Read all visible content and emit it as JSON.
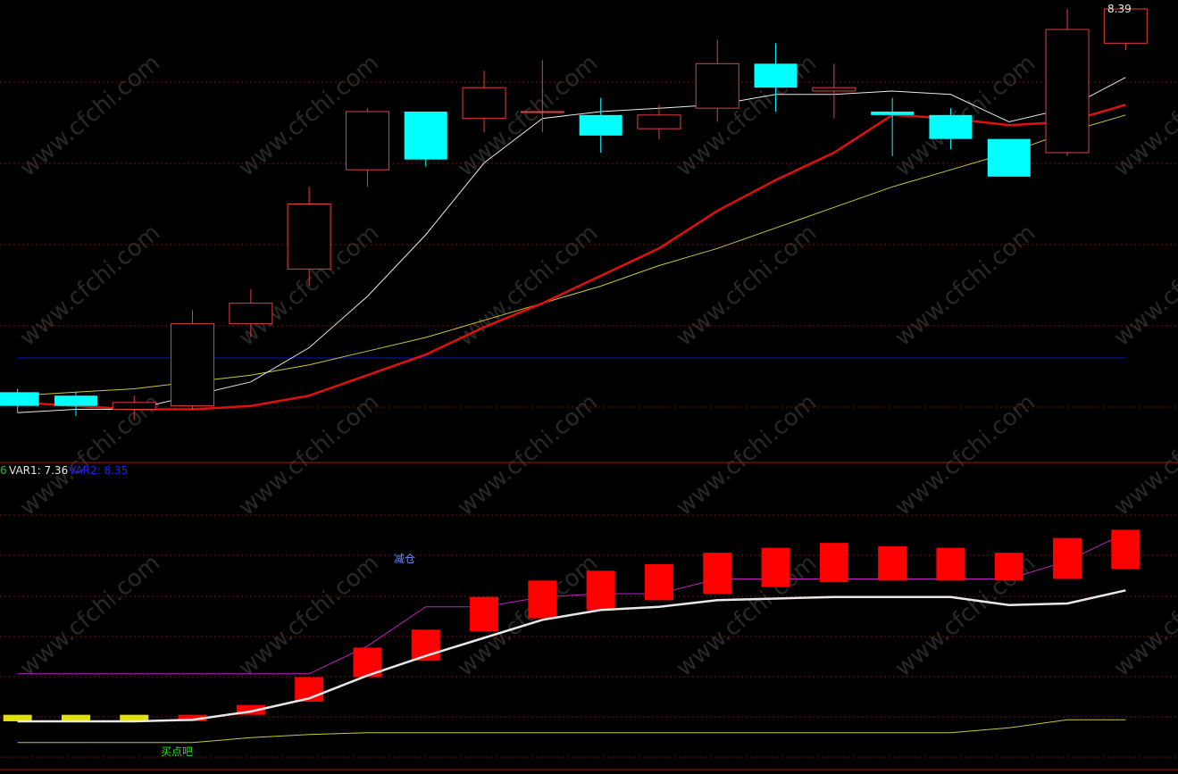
{
  "colors": {
    "background": "#000000",
    "grid": "#7a1010",
    "divider": "#a01818",
    "up": "#e04040",
    "down": "#00ffff",
    "ma_white": "#e8e8e8",
    "ma_red": "#e01010",
    "ma_yellow": "#c8c832",
    "ma_blue": "#1010d0",
    "upper_band": "#c020c0",
    "lower_band": "#c8c832",
    "sub_bar": "#ff0000",
    "sub_bar_yellow": "#e0e000",
    "var1": "#e8e8e8",
    "var2": "#2020ff",
    "sell_label": "#6a8cff",
    "buy_label": "#20e020",
    "price_label": "#e8e8e8",
    "watermark": "#4a4a4a"
  },
  "watermark_text": "www.cfchi.com",
  "main_panel": {
    "max_price_label": "8.39",
    "candles": [
      {
        "o": 7.27,
        "c": 7.23,
        "h": 7.28,
        "l": 7.21
      },
      {
        "o": 7.26,
        "c": 7.23,
        "h": 7.27,
        "l": 7.2
      },
      {
        "o": 7.22,
        "c": 7.24,
        "h": 7.26,
        "l": 7.19
      },
      {
        "o": 7.23,
        "c": 7.47,
        "h": 7.51,
        "l": 7.22
      },
      {
        "o": 7.47,
        "c": 7.53,
        "h": 7.57,
        "l": 7.43
      },
      {
        "o": 7.63,
        "c": 7.82,
        "h": 7.87,
        "l": 7.58
      },
      {
        "o": 7.92,
        "c": 8.09,
        "h": 8.1,
        "l": 7.87
      },
      {
        "o": 8.09,
        "c": 7.95,
        "h": 8.09,
        "l": 7.93
      },
      {
        "o": 8.07,
        "c": 8.16,
        "h": 8.21,
        "l": 8.03
      },
      {
        "o": 8.09,
        "c": 8.09,
        "h": 8.24,
        "l": 8.03
      },
      {
        "o": 8.08,
        "c": 8.02,
        "h": 8.13,
        "l": 7.97
      },
      {
        "o": 8.04,
        "c": 8.08,
        "h": 8.11,
        "l": 8.01
      },
      {
        "o": 8.1,
        "c": 8.23,
        "h": 8.3,
        "l": 8.06
      },
      {
        "o": 8.23,
        "c": 8.16,
        "h": 8.29,
        "l": 8.09
      },
      {
        "o": 8.15,
        "c": 8.16,
        "h": 8.23,
        "l": 8.07
      },
      {
        "o": 8.09,
        "c": 8.08,
        "h": 8.13,
        "l": 7.96
      },
      {
        "o": 8.08,
        "c": 8.01,
        "h": 8.1,
        "l": 7.98
      },
      {
        "o": 8.01,
        "c": 7.9,
        "h": 8.01,
        "l": 7.9
      },
      {
        "o": 7.97,
        "c": 8.33,
        "h": 8.39,
        "l": 7.96
      },
      {
        "o": 8.29,
        "c": 8.39,
        "h": 8.39,
        "l": 8.27
      }
    ],
    "ma_white": [
      7.21,
      7.22,
      7.22,
      7.26,
      7.3,
      7.4,
      7.55,
      7.73,
      7.94,
      8.07,
      8.09,
      8.1,
      8.11,
      8.14,
      8.14,
      8.15,
      8.14,
      8.06,
      8.1,
      8.19
    ],
    "ma_red": [
      7.24,
      7.23,
      7.22,
      7.22,
      7.23,
      7.26,
      7.32,
      7.38,
      7.46,
      7.53,
      7.61,
      7.69,
      7.8,
      7.89,
      7.97,
      8.08,
      8.07,
      8.05,
      8.06,
      8.11
    ],
    "ma_yellow": [
      7.26,
      7.27,
      7.28,
      7.3,
      7.32,
      7.35,
      7.39,
      7.43,
      7.48,
      7.53,
      7.58,
      7.64,
      7.69,
      7.75,
      7.81,
      7.87,
      7.92,
      7.97,
      8.03,
      8.08
    ],
    "ma_blue": [
      7.37,
      7.37,
      7.37,
      7.37,
      7.37,
      7.37,
      7.37,
      7.37,
      7.37,
      7.37,
      7.37,
      7.37,
      7.37,
      7.37,
      7.37,
      7.37,
      7.37,
      7.37,
      7.37,
      7.37
    ]
  },
  "sub_panel": {
    "legend_prefix": "6",
    "var1_label": "VAR1: 7.36",
    "var2_label": "VAR2: 8.35",
    "sell_text": "减仓",
    "buy_text": "买点吧",
    "bars": [
      {
        "lo": 0,
        "hi": 0.04,
        "color": "yellow"
      },
      {
        "lo": 0,
        "hi": 0.04,
        "color": "yellow"
      },
      {
        "lo": 0,
        "hi": 0.04,
        "color": "yellow"
      },
      {
        "lo": 0,
        "hi": 0.04,
        "color": "red"
      },
      {
        "lo": 0.04,
        "hi": 0.1,
        "color": "red"
      },
      {
        "lo": 0.12,
        "hi": 0.27,
        "color": "red"
      },
      {
        "lo": 0.27,
        "hi": 0.45,
        "color": "red"
      },
      {
        "lo": 0.37,
        "hi": 0.56,
        "color": "red"
      },
      {
        "lo": 0.55,
        "hi": 0.76,
        "color": "red"
      },
      {
        "lo": 0.63,
        "hi": 0.86,
        "color": "red"
      },
      {
        "lo": 0.68,
        "hi": 0.92,
        "color": "red"
      },
      {
        "lo": 0.74,
        "hi": 0.96,
        "color": "red"
      },
      {
        "lo": 0.78,
        "hi": 1.03,
        "color": "red"
      },
      {
        "lo": 0.82,
        "hi": 1.06,
        "color": "red"
      },
      {
        "lo": 0.85,
        "hi": 1.09,
        "color": "red"
      },
      {
        "lo": 0.86,
        "hi": 1.07,
        "color": "red"
      },
      {
        "lo": 0.86,
        "hi": 1.06,
        "color": "red"
      },
      {
        "lo": 0.86,
        "hi": 1.03,
        "color": "red"
      },
      {
        "lo": 0.87,
        "hi": 1.12,
        "color": "red"
      },
      {
        "lo": 0.93,
        "hi": 1.17,
        "color": "red"
      }
    ],
    "white_line": [
      0,
      0,
      0,
      0.01,
      0.06,
      0.14,
      0.28,
      0.4,
      0.51,
      0.62,
      0.68,
      0.7,
      0.74,
      0.75,
      0.76,
      0.76,
      0.76,
      0.71,
      0.72,
      0.8
    ],
    "upper_band": [
      0.29,
      0.29,
      0.29,
      0.29,
      0.29,
      0.29,
      0.46,
      0.7,
      0.7,
      0.76,
      0.78,
      0.78,
      0.87,
      0.87,
      0.87,
      0.87,
      0.87,
      0.87,
      0.98,
      1.15
    ],
    "lower_band": [
      -0.13,
      -0.13,
      -0.13,
      -0.13,
      -0.1,
      -0.08,
      -0.07,
      -0.07,
      -0.07,
      -0.07,
      -0.07,
      -0.07,
      -0.07,
      -0.07,
      -0.07,
      -0.07,
      -0.07,
      -0.04,
      0.01,
      0.01
    ]
  }
}
